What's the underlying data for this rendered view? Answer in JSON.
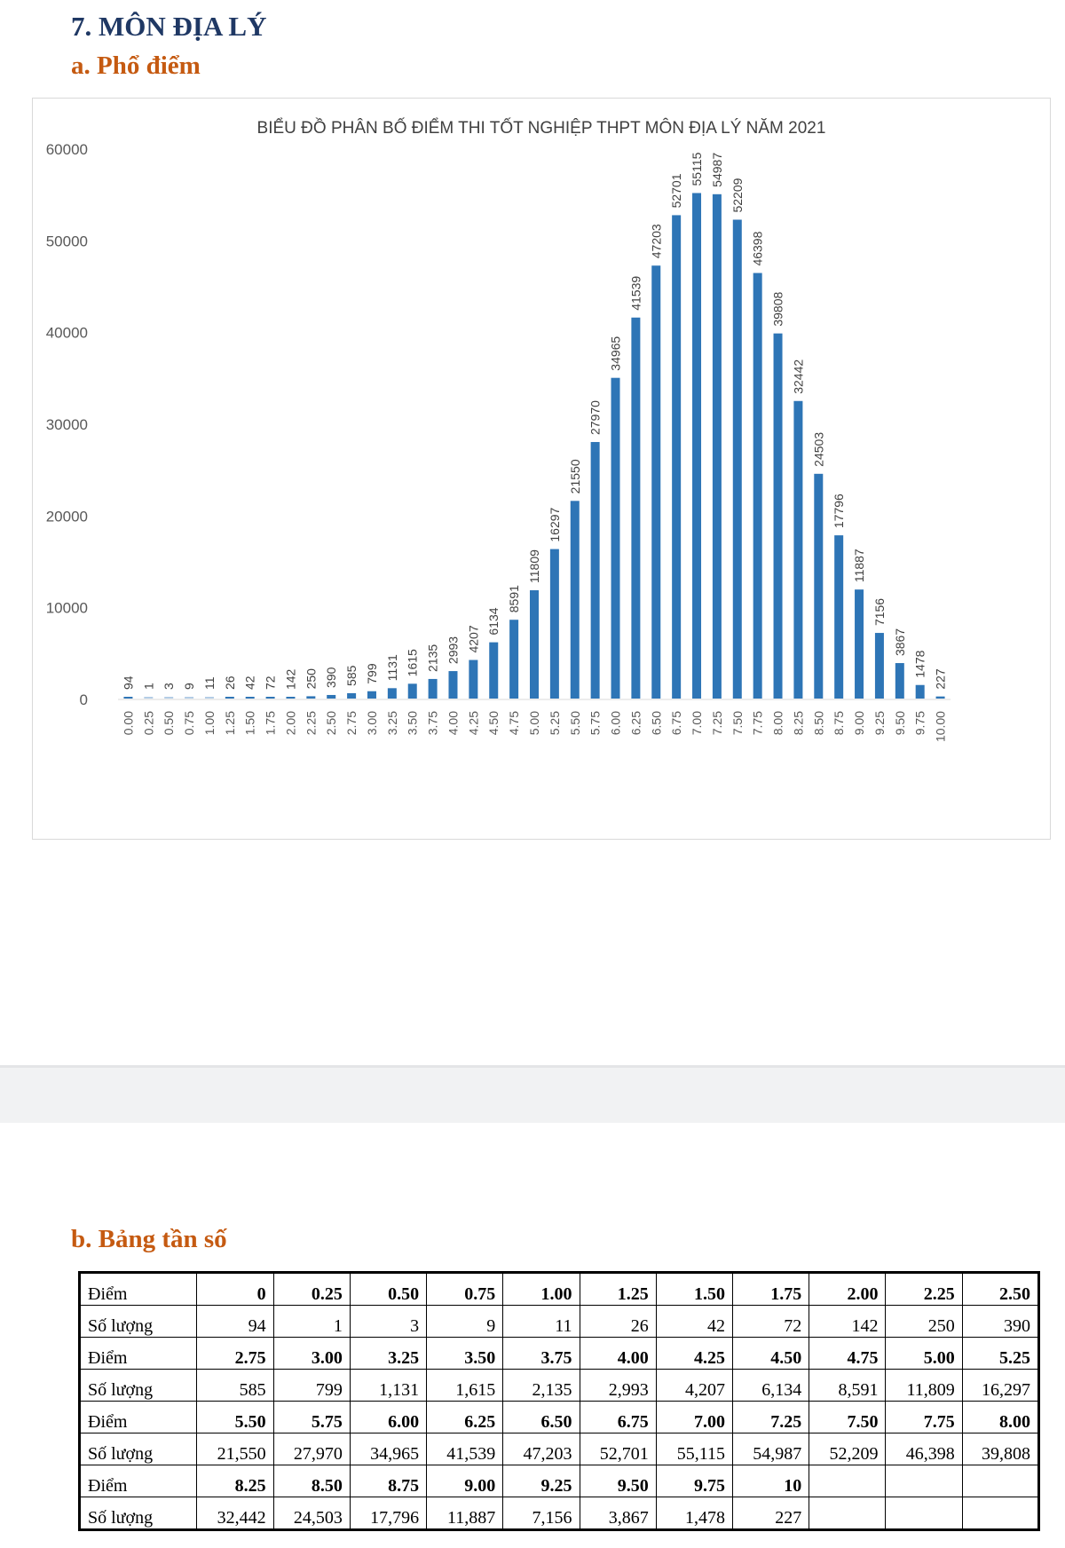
{
  "section_title": "7. MÔN ĐỊA LÝ",
  "sub_a": "a. Phổ điểm",
  "sub_b": "b. Bảng tần số",
  "chart_data": {
    "type": "bar",
    "title": "BIỂU ĐỒ PHÂN BỐ ĐIỂM THI TỐT NGHIỆP THPT MÔN ĐỊA LÝ NĂM 2021",
    "categories": [
      "0.00",
      "0.25",
      "0.50",
      "0.75",
      "1.00",
      "1.25",
      "1.50",
      "1.75",
      "2.00",
      "2.25",
      "2.50",
      "2.75",
      "3.00",
      "3.25",
      "3.50",
      "3.75",
      "4.00",
      "4.25",
      "4.50",
      "4.75",
      "5.00",
      "5.25",
      "5.50",
      "5.75",
      "6.00",
      "6.25",
      "6.50",
      "6.75",
      "7.00",
      "7.25",
      "7.50",
      "7.75",
      "8.00",
      "8.25",
      "8.50",
      "8.75",
      "9.00",
      "9.25",
      "9.50",
      "9.75",
      "10.00"
    ],
    "values": [
      94,
      1,
      3,
      9,
      11,
      26,
      42,
      72,
      142,
      250,
      390,
      585,
      799,
      1131,
      1615,
      2135,
      2993,
      4207,
      6134,
      8591,
      11809,
      16297,
      21550,
      27970,
      34965,
      41539,
      47203,
      52701,
      55115,
      54987,
      52209,
      46398,
      39808,
      32442,
      24503,
      17796,
      11887,
      7156,
      3867,
      1478,
      227
    ],
    "ylim": [
      0,
      60000
    ],
    "yticks": [
      0,
      10000,
      20000,
      30000,
      40000,
      50000,
      60000
    ],
    "xlabel": "",
    "ylabel": "",
    "grid": false,
    "bar_color": "#2e75b6"
  },
  "table": {
    "row_label_score": "Điểm",
    "row_label_count": "Số lượng",
    "rows": [
      {
        "scores": [
          "0",
          "0.25",
          "0.50",
          "0.75",
          "1.00",
          "1.25",
          "1.50",
          "1.75",
          "2.00",
          "2.25",
          "2.50"
        ],
        "counts": [
          "94",
          "1",
          "3",
          "9",
          "11",
          "26",
          "42",
          "72",
          "142",
          "250",
          "390"
        ]
      },
      {
        "scores": [
          "2.75",
          "3.00",
          "3.25",
          "3.50",
          "3.75",
          "4.00",
          "4.25",
          "4.50",
          "4.75",
          "5.00",
          "5.25"
        ],
        "counts": [
          "585",
          "799",
          "1,131",
          "1,615",
          "2,135",
          "2,993",
          "4,207",
          "6,134",
          "8,591",
          "11,809",
          "16,297"
        ]
      },
      {
        "scores": [
          "5.50",
          "5.75",
          "6.00",
          "6.25",
          "6.50",
          "6.75",
          "7.00",
          "7.25",
          "7.50",
          "7.75",
          "8.00"
        ],
        "counts": [
          "21,550",
          "27,970",
          "34,965",
          "41,539",
          "47,203",
          "52,701",
          "55,115",
          "54,987",
          "52,209",
          "46,398",
          "39,808"
        ]
      },
      {
        "scores": [
          "8.25",
          "8.50",
          "8.75",
          "9.00",
          "9.25",
          "9.50",
          "9.75",
          "10",
          "",
          "",
          ""
        ],
        "counts": [
          "32,442",
          "24,503",
          "17,796",
          "11,887",
          "7,156",
          "3,867",
          "1,478",
          "227",
          "",
          "",
          ""
        ]
      }
    ]
  }
}
